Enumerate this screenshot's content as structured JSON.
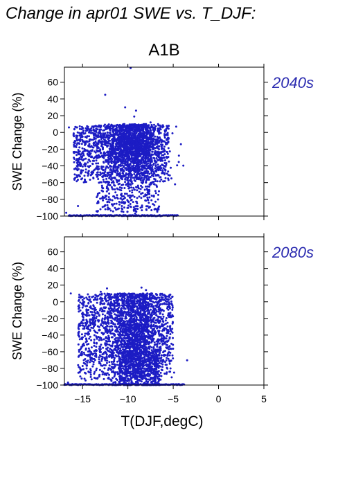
{
  "title": "Change in apr01 SWE vs. T_DJF:",
  "scenario": "A1B",
  "colors": {
    "points": "#1c1cc4",
    "panel_label": "#2b2bb0",
    "axis": "#000000"
  },
  "chart_data": [
    {
      "type": "scatter",
      "panel_label": "2040s",
      "ylabel": "SWE Change (%)",
      "xlabel": "",
      "xlim": [
        -17,
        5
      ],
      "ylim": [
        -100,
        78
      ],
      "xticks": [
        -15,
        -10,
        -5,
        0,
        5
      ],
      "yticks": [
        60,
        40,
        20,
        0,
        -20,
        -40,
        -60,
        -80,
        -100
      ],
      "ytick_labels": [
        "60",
        "40",
        "20",
        "0",
        "−20",
        "−40",
        "−60",
        "−80",
        "−100"
      ],
      "points": [
        [
          -9.7,
          77
        ],
        [
          -12.5,
          45
        ],
        [
          -10.3,
          30
        ],
        [
          -9.1,
          26
        ],
        [
          -9.3,
          19
        ],
        [
          -15.6,
          6
        ],
        [
          -16.5,
          6
        ],
        [
          -14.2,
          3
        ],
        [
          -11.0,
          8
        ],
        [
          -8.0,
          10
        ],
        [
          -7.5,
          12
        ],
        [
          -6.5,
          5
        ],
        [
          -5.8,
          2
        ],
        [
          -13.5,
          -5
        ],
        [
          -12.0,
          -10
        ],
        [
          -10.5,
          -15
        ],
        [
          -9.0,
          -12
        ],
        [
          -8.5,
          -20
        ],
        [
          -7.0,
          -25
        ],
        [
          -6.0,
          -30
        ],
        [
          -11.5,
          -35
        ],
        [
          -10.0,
          -40
        ],
        [
          -9.5,
          -45
        ],
        [
          -8.8,
          -55
        ],
        [
          -8.0,
          -60
        ],
        [
          -7.2,
          -50
        ],
        [
          -6.8,
          -65
        ],
        [
          -9.8,
          -70
        ],
        [
          -11.2,
          -75
        ],
        [
          -10.4,
          -85
        ],
        [
          -8.6,
          -90
        ],
        [
          -7.8,
          -80
        ],
        [
          -6.4,
          -45
        ],
        [
          -5.2,
          -55
        ],
        [
          -4.8,
          -62
        ],
        [
          -12.8,
          -28
        ],
        [
          -13.8,
          -18
        ],
        [
          -14.8,
          -12
        ],
        [
          -15.2,
          -40
        ],
        [
          -13.0,
          -50
        ],
        [
          -16.8,
          -96
        ],
        [
          -15.5,
          -88
        ],
        [
          -12.2,
          -92
        ],
        [
          -9.2,
          -97
        ],
        [
          -7.4,
          -93
        ]
      ],
      "bottom_band": {
        "x_range": [
          -16.5,
          -4.5
        ],
        "y": -100
      },
      "cluster": {
        "center": [
          -9.5,
          -15
        ],
        "x_spread": 2.6,
        "y_spread": 18,
        "count": 1400
      },
      "spread": {
        "x_range": [
          -16.0,
          -5.5
        ],
        "y_range": [
          -60,
          8
        ],
        "count": 1100
      },
      "tail": {
        "x_range": [
          -13.5,
          -6.5
        ],
        "y_range": [
          -95,
          -40
        ],
        "count": 380
      }
    },
    {
      "type": "scatter",
      "panel_label": "2080s",
      "ylabel": "SWE Change (%)",
      "xlabel": "T(DJF,degC)",
      "xlim": [
        -17,
        5
      ],
      "ylim": [
        -100,
        78
      ],
      "xticks": [
        -15,
        -10,
        -5,
        0,
        5
      ],
      "xtick_labels": [
        "−15",
        "−10",
        "−5",
        "0",
        "5"
      ],
      "yticks": [
        60,
        40,
        20,
        0,
        -20,
        -40,
        -60,
        -80,
        -100
      ],
      "ytick_labels": [
        "60",
        "40",
        "20",
        "0",
        "−20",
        "−40",
        "−60",
        "−80",
        "−100"
      ],
      "points": [
        [
          -16.3,
          10
        ],
        [
          -15.0,
          6
        ],
        [
          -13.0,
          12
        ],
        [
          -12.3,
          16
        ],
        [
          -8.5,
          17
        ],
        [
          -8.0,
          14
        ],
        [
          -7.5,
          8
        ],
        [
          -6.5,
          2
        ],
        [
          -5.7,
          -3
        ],
        [
          -14.5,
          -5
        ],
        [
          -13.5,
          -20
        ],
        [
          -12.0,
          -30
        ],
        [
          -11.0,
          -40
        ],
        [
          -10.0,
          -50
        ],
        [
          -9.0,
          -60
        ],
        [
          -8.2,
          -70
        ],
        [
          -7.0,
          -75
        ],
        [
          -6.0,
          -65
        ],
        [
          -5.3,
          -80
        ],
        [
          -4.9,
          -85
        ],
        [
          -12.5,
          -70
        ],
        [
          -11.5,
          -85
        ],
        [
          -10.8,
          -92
        ],
        [
          -9.6,
          -96
        ],
        [
          -14.2,
          -60
        ],
        [
          -15.3,
          -45
        ],
        [
          -16.6,
          -97
        ],
        [
          -6.8,
          -90
        ],
        [
          -7.6,
          -40
        ],
        [
          -6.2,
          -35
        ]
      ],
      "bottom_band": {
        "x_range": [
          -17.0,
          -3.8
        ],
        "y": -100
      },
      "cluster": {
        "center": [
          -9.3,
          -35
        ],
        "x_spread": 2.4,
        "y_spread": 30,
        "count": 1300
      },
      "spread": {
        "x_range": [
          -15.5,
          -5.0
        ],
        "y_range": [
          -95,
          10
        ],
        "count": 1500
      },
      "tail": {
        "x_range": [
          -11.0,
          -6.5
        ],
        "y_range": [
          -100,
          -60
        ],
        "count": 450
      }
    }
  ]
}
